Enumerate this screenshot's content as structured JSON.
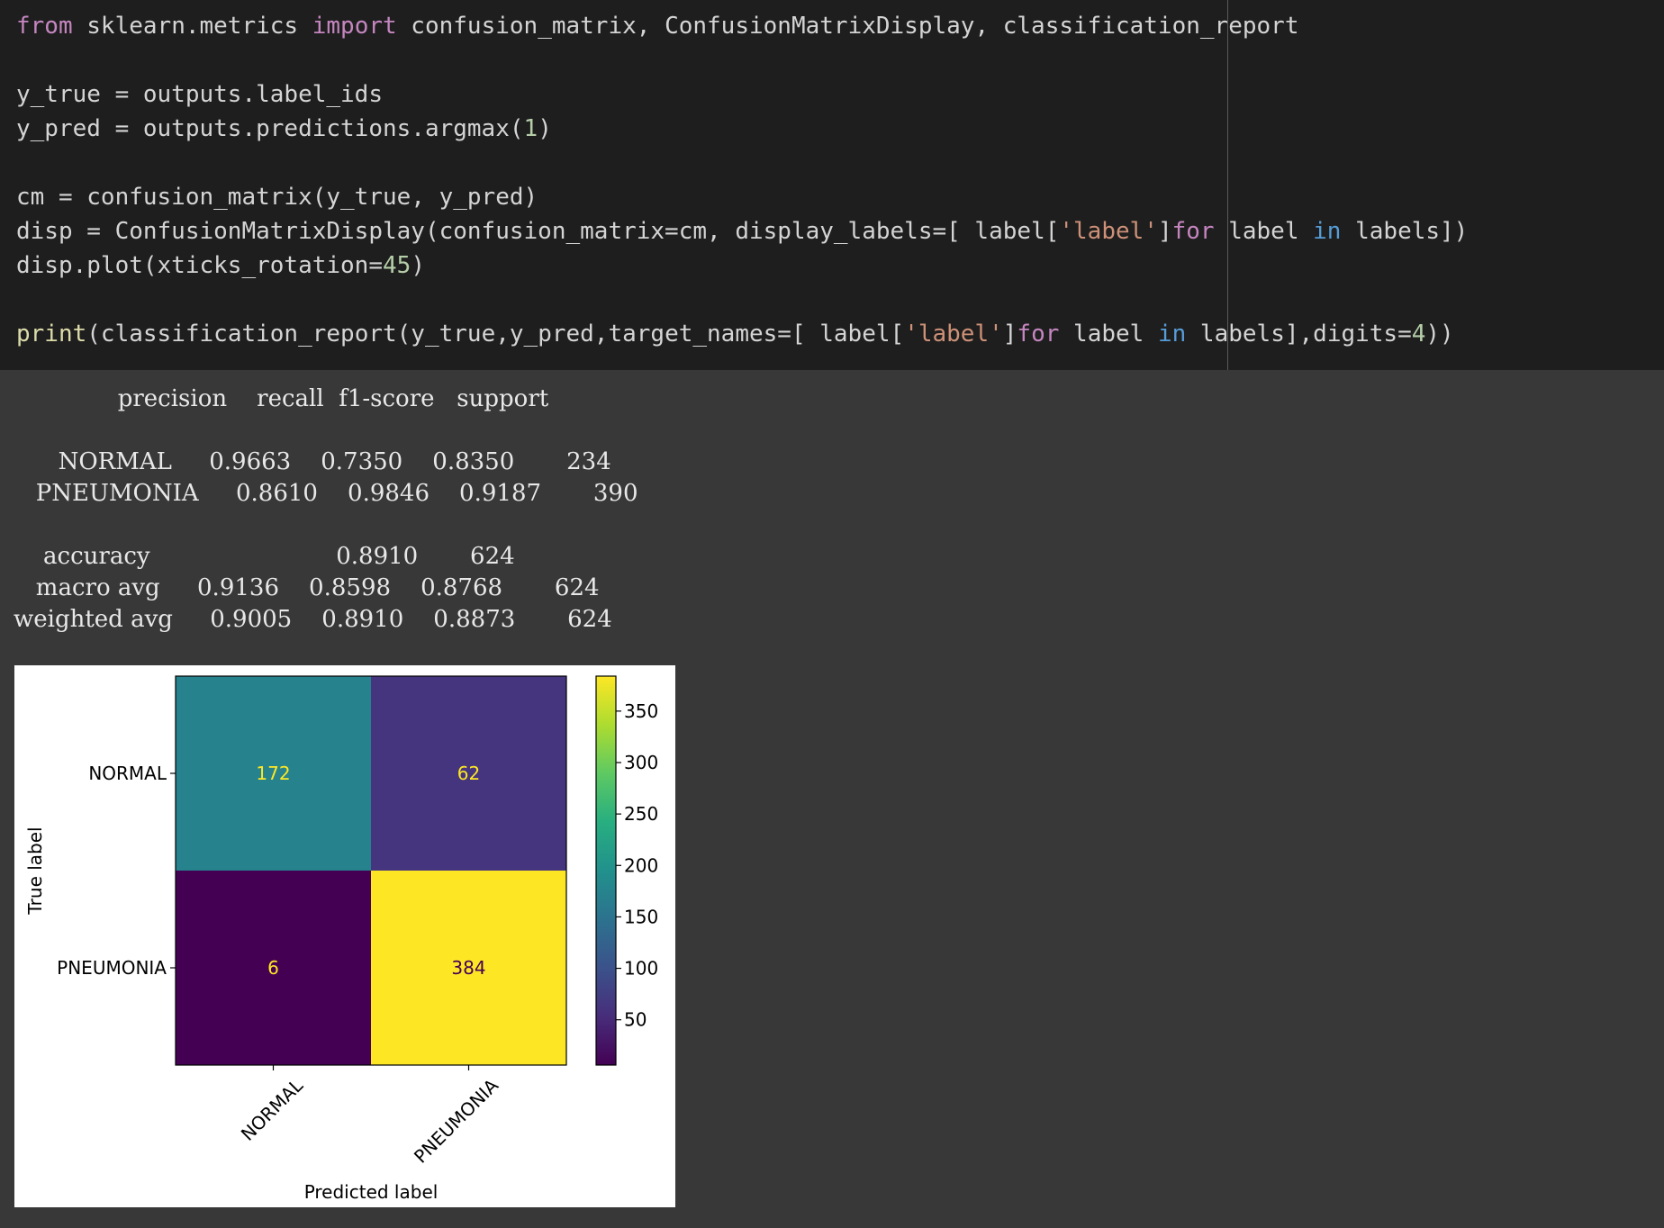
{
  "code_cell": {
    "lines": [
      [
        {
          "t": "from",
          "c": "#c586c0"
        },
        {
          "t": " sklearn.metrics ",
          "c": "#d4d4d4"
        },
        {
          "t": "import",
          "c": "#c586c0"
        },
        {
          "t": " confusion_matrix, ConfusionMatrixDisplay, classification_report",
          "c": "#d4d4d4"
        }
      ],
      [],
      [
        {
          "t": "y_true = outputs.label_ids",
          "c": "#d4d4d4"
        }
      ],
      [
        {
          "t": "y_pred = outputs.predictions.argmax(",
          "c": "#d4d4d4"
        },
        {
          "t": "1",
          "c": "#b5cea8"
        },
        {
          "t": ")",
          "c": "#d4d4d4"
        }
      ],
      [],
      [
        {
          "t": "cm = confusion_matrix(y_true, y_pred)",
          "c": "#d4d4d4"
        }
      ],
      [
        {
          "t": "disp = ConfusionMatrixDisplay(confusion_matrix=cm, display_labels=[ label[",
          "c": "#d4d4d4"
        },
        {
          "t": "'label'",
          "c": "#ce9178"
        },
        {
          "t": "]",
          "c": "#d4d4d4"
        },
        {
          "t": "for",
          "c": "#c586c0"
        },
        {
          "t": " label ",
          "c": "#d4d4d4"
        },
        {
          "t": "in",
          "c": "#569cd6"
        },
        {
          "t": " labels])",
          "c": "#d4d4d4"
        }
      ],
      [
        {
          "t": "disp.plot(xticks_rotation=",
          "c": "#d4d4d4"
        },
        {
          "t": "45",
          "c": "#b5cea8"
        },
        {
          "t": ")",
          "c": "#d4d4d4"
        }
      ],
      [],
      [
        {
          "t": "print",
          "c": "#dcdcaa"
        },
        {
          "t": "(classification_report(y_true,y_pred,target_names=[ label[",
          "c": "#d4d4d4"
        },
        {
          "t": "'label'",
          "c": "#ce9178"
        },
        {
          "t": "]",
          "c": "#d4d4d4"
        },
        {
          "t": "for",
          "c": "#c586c0"
        },
        {
          "t": " label ",
          "c": "#d4d4d4"
        },
        {
          "t": "in",
          "c": "#569cd6"
        },
        {
          "t": " labels],digits=",
          "c": "#d4d4d4"
        },
        {
          "t": "4",
          "c": "#b5cea8"
        },
        {
          "t": "))",
          "c": "#d4d4d4"
        }
      ]
    ]
  },
  "report": {
    "lines": [
      "              precision    recall  f1-score   support",
      "",
      "      NORMAL     0.9663    0.7350    0.8350       234",
      "   PNEUMONIA     0.8610    0.9846    0.9187       390",
      "",
      "    accuracy                         0.8910       624",
      "   macro avg     0.9136    0.8598    0.8768       624",
      "weighted avg     0.9005    0.8910    0.8873       624"
    ]
  },
  "chart_data": {
    "type": "heatmap",
    "title": "",
    "xlabel": "Predicted label",
    "ylabel": "True label",
    "x_categories": [
      "NORMAL",
      "PNEUMONIA"
    ],
    "y_categories": [
      "NORMAL",
      "PNEUMONIA"
    ],
    "values": [
      [
        172,
        62
      ],
      [
        6,
        384
      ]
    ],
    "colormap": "viridis",
    "xticks_rotation": 45,
    "colorbar": {
      "range": [
        6,
        384
      ],
      "ticks": [
        50,
        100,
        150,
        200,
        250,
        300,
        350
      ]
    }
  }
}
